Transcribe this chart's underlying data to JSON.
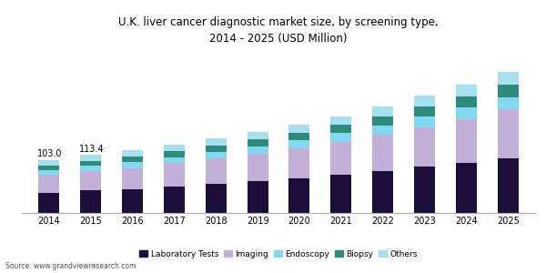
{
  "years": [
    "2014",
    "2015",
    "2016",
    "2017",
    "2018",
    "2019",
    "2020",
    "2021",
    "2022",
    "2023",
    "2024",
    "2025"
  ],
  "laboratory_tests": [
    40,
    44,
    47,
    52,
    57,
    62,
    68,
    74,
    82,
    90,
    98,
    107
  ],
  "imaging": [
    35,
    38,
    41,
    45,
    49,
    54,
    59,
    65,
    71,
    78,
    86,
    95
  ],
  "endoscopy": [
    9,
    10,
    11,
    12,
    13,
    14,
    15,
    17,
    18,
    20,
    22,
    24
  ],
  "biopsy": [
    9,
    10,
    11,
    12,
    13,
    14,
    15,
    16,
    18,
    20,
    22,
    24
  ],
  "others": [
    10,
    11.4,
    12,
    13,
    14,
    15,
    16,
    17,
    19,
    21,
    23,
    25
  ],
  "annotations": {
    "2014": "103.0",
    "2015": "113.4"
  },
  "colors": {
    "laboratory_tests": "#1c0e3a",
    "imaging": "#c2b0d8",
    "endoscopy": "#82d8f0",
    "biopsy": "#2e8b7a",
    "others": "#a8dff0"
  },
  "title": "U.K. liver cancer diagnostic market size, by screening type,\n2014 - 2025 (USD Million)",
  "source": "Source: www.grandviewresearch.com",
  "legend_labels": [
    "Laboratory Tests",
    "Imaging",
    "Endoscopy",
    "Biopsy",
    "Others"
  ],
  "background_color": "#ffffff",
  "title_fontsize": 8.5,
  "label_fontsize": 7,
  "ylim": [
    0,
    320
  ],
  "figsize": [
    6.0,
    3.0
  ],
  "dpi": 100
}
